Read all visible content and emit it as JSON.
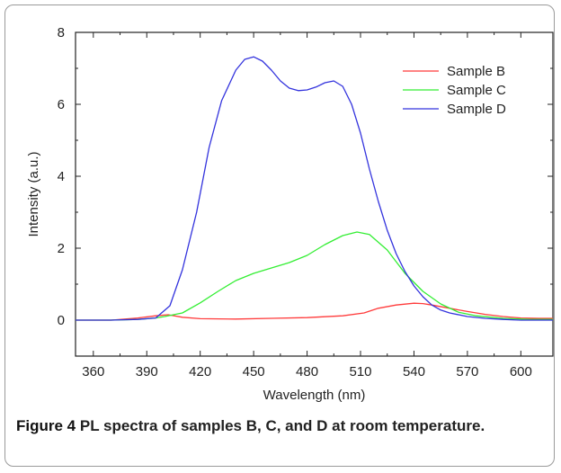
{
  "chart_data": {
    "type": "line",
    "title": "",
    "xlabel": "Wavelength (nm)",
    "ylabel": "Intensity (a.u.)",
    "xlim": [
      350,
      618
    ],
    "ylim": [
      -1.0,
      8.0
    ],
    "xticks": [
      360,
      390,
      420,
      450,
      480,
      510,
      540,
      570,
      600
    ],
    "yticks": [
      0,
      2,
      4,
      6,
      8
    ],
    "grid": false,
    "legend_position": "top-right",
    "series": [
      {
        "name": "Sample B",
        "color": "#ff3b3b",
        "x": [
          350,
          370,
          385,
          395,
          402,
          410,
          420,
          440,
          460,
          480,
          500,
          512,
          520,
          530,
          540,
          545,
          550,
          560,
          570,
          580,
          590,
          600,
          610,
          618
        ],
        "y": [
          0.0,
          0.0,
          0.06,
          0.12,
          0.15,
          0.08,
          0.04,
          0.03,
          0.05,
          0.07,
          0.12,
          0.2,
          0.33,
          0.42,
          0.47,
          0.46,
          0.42,
          0.33,
          0.24,
          0.16,
          0.1,
          0.06,
          0.05,
          0.05
        ]
      },
      {
        "name": "Sample C",
        "color": "#33ee33",
        "x": [
          350,
          370,
          385,
          395,
          400,
          410,
          420,
          430,
          440,
          450,
          460,
          470,
          480,
          490,
          500,
          508,
          515,
          525,
          535,
          545,
          555,
          565,
          575,
          590,
          605,
          618
        ],
        "y": [
          0.0,
          0.0,
          0.02,
          0.06,
          0.1,
          0.2,
          0.48,
          0.8,
          1.1,
          1.3,
          1.45,
          1.6,
          1.8,
          2.1,
          2.35,
          2.45,
          2.38,
          1.95,
          1.3,
          0.8,
          0.45,
          0.22,
          0.12,
          0.05,
          0.02,
          0.02
        ]
      },
      {
        "name": "Sample D",
        "color": "#3333dd",
        "x": [
          350,
          370,
          385,
          395,
          403,
          410,
          418,
          425,
          432,
          440,
          445,
          450,
          455,
          460,
          465,
          470,
          475,
          480,
          485,
          490,
          495,
          500,
          505,
          510,
          515,
          520,
          525,
          530,
          535,
          540,
          545,
          550,
          555,
          560,
          570,
          580,
          590,
          600,
          610,
          618
        ],
        "y": [
          0.0,
          0.0,
          0.02,
          0.06,
          0.4,
          1.4,
          3.0,
          4.8,
          6.1,
          6.95,
          7.25,
          7.32,
          7.2,
          6.95,
          6.65,
          6.45,
          6.38,
          6.4,
          6.48,
          6.6,
          6.65,
          6.5,
          6.0,
          5.2,
          4.2,
          3.3,
          2.5,
          1.85,
          1.35,
          0.95,
          0.65,
          0.42,
          0.28,
          0.2,
          0.1,
          0.05,
          0.02,
          0.0,
          0.0,
          0.0
        ]
      }
    ]
  },
  "caption": {
    "label": "Figure 4",
    "text": "PL spectra of samples B, C, and D at room temperature."
  }
}
